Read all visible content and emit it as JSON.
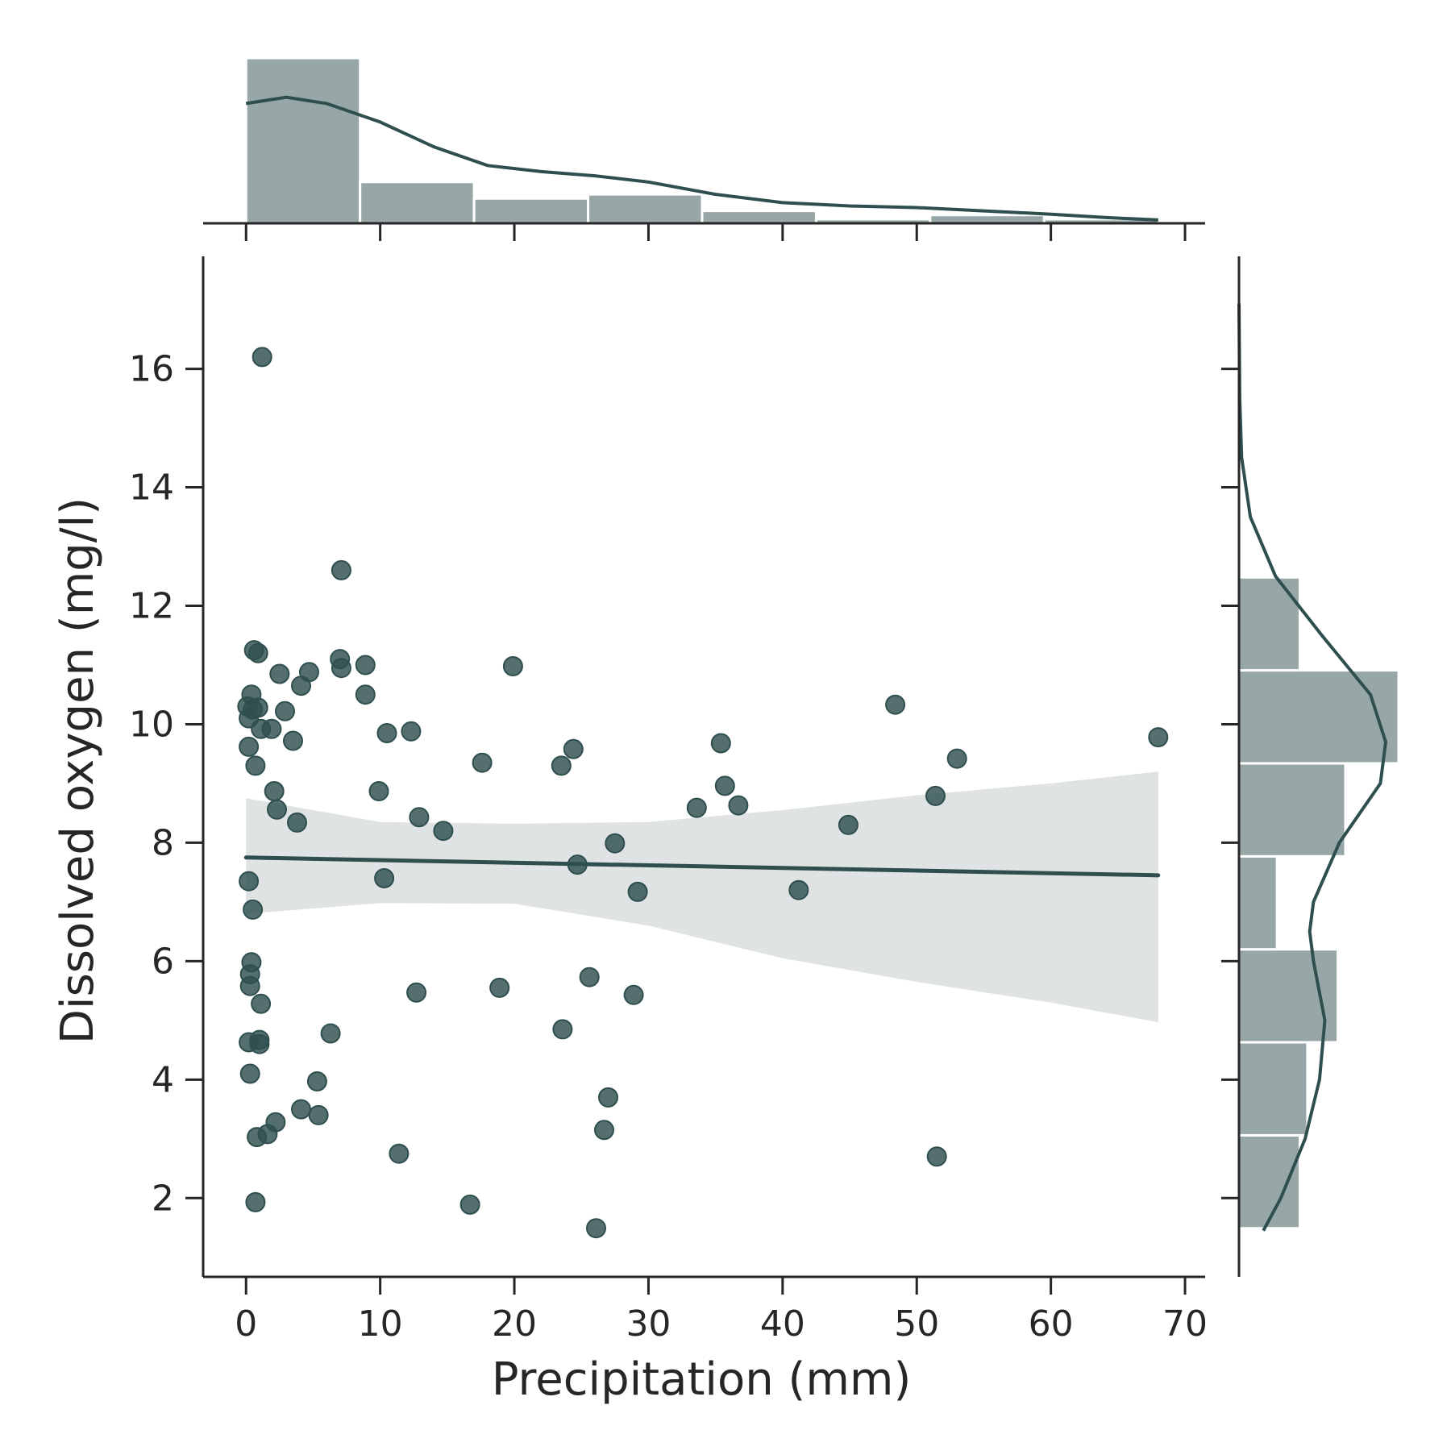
{
  "chart_data": {
    "type": "scatter",
    "subtype": "jointplot with regression line, marginal histograms and KDE",
    "title": "",
    "xlabel": "Precipitation (mm)",
    "ylabel": "Dissolved oxygen (mg/l)",
    "xlim": [
      -3.2,
      71.5
    ],
    "ylim": [
      0.67,
      17.9
    ],
    "xticks": [
      0,
      10,
      20,
      30,
      40,
      50,
      60,
      70
    ],
    "yticks": [
      2,
      4,
      6,
      8,
      10,
      12,
      14,
      16
    ],
    "grid": false,
    "colors": {
      "points": "#2f4f4f",
      "line": "#2f4f4f",
      "ci_band": "#dfe3e3",
      "hist_fill": "#97a7a7",
      "axis": "#262626"
    },
    "points": [
      [
        1.2,
        16.2
      ],
      [
        7.1,
        12.6
      ],
      [
        0.6,
        11.25
      ],
      [
        0.9,
        11.2
      ],
      [
        7.0,
        11.1
      ],
      [
        7.1,
        10.95
      ],
      [
        8.9,
        11.0
      ],
      [
        19.9,
        10.98
      ],
      [
        2.5,
        10.85
      ],
      [
        4.7,
        10.88
      ],
      [
        4.1,
        10.65
      ],
      [
        0.4,
        10.5
      ],
      [
        8.9,
        10.5
      ],
      [
        0.1,
        10.3
      ],
      [
        0.5,
        10.25
      ],
      [
        0.9,
        10.28
      ],
      [
        0.2,
        10.1
      ],
      [
        2.9,
        10.22
      ],
      [
        1.1,
        9.92
      ],
      [
        1.9,
        9.92
      ],
      [
        10.5,
        9.85
      ],
      [
        12.3,
        9.88
      ],
      [
        48.4,
        10.33
      ],
      [
        0.2,
        9.62
      ],
      [
        3.5,
        9.72
      ],
      [
        24.4,
        9.58
      ],
      [
        35.4,
        9.68
      ],
      [
        68.0,
        9.78
      ],
      [
        0.7,
        9.3
      ],
      [
        17.6,
        9.35
      ],
      [
        23.5,
        9.3
      ],
      [
        53.0,
        9.42
      ],
      [
        2.1,
        8.87
      ],
      [
        9.9,
        8.87
      ],
      [
        35.7,
        8.96
      ],
      [
        51.4,
        8.79
      ],
      [
        2.3,
        8.56
      ],
      [
        36.7,
        8.63
      ],
      [
        33.6,
        8.59
      ],
      [
        3.8,
        8.34
      ],
      [
        12.9,
        8.43
      ],
      [
        14.7,
        8.2
      ],
      [
        44.9,
        8.3
      ],
      [
        27.5,
        7.99
      ],
      [
        24.7,
        7.63
      ],
      [
        0.2,
        7.35
      ],
      [
        10.3,
        7.4
      ],
      [
        41.2,
        7.2
      ],
      [
        29.2,
        7.17
      ],
      [
        0.5,
        6.87
      ],
      [
        0.4,
        5.98
      ],
      [
        0.3,
        5.78
      ],
      [
        0.3,
        5.58
      ],
      [
        25.6,
        5.73
      ],
      [
        18.9,
        5.55
      ],
      [
        12.7,
        5.47
      ],
      [
        28.9,
        5.43
      ],
      [
        1.1,
        5.28
      ],
      [
        6.3,
        4.78
      ],
      [
        23.6,
        4.85
      ],
      [
        0.2,
        4.63
      ],
      [
        1.0,
        4.67
      ],
      [
        1.0,
        4.6
      ],
      [
        0.3,
        4.1
      ],
      [
        5.3,
        3.97
      ],
      [
        27.0,
        3.7
      ],
      [
        4.1,
        3.5
      ],
      [
        5.4,
        3.4
      ],
      [
        2.2,
        3.28
      ],
      [
        26.7,
        3.15
      ],
      [
        1.6,
        3.08
      ],
      [
        0.8,
        3.03
      ],
      [
        11.4,
        2.75
      ],
      [
        51.5,
        2.7
      ],
      [
        0.7,
        1.93
      ],
      [
        16.7,
        1.89
      ],
      [
        26.1,
        1.49
      ]
    ],
    "regression": {
      "x_range": [
        0.0,
        68.0
      ],
      "y_at_start": 7.75,
      "y_at_end": 7.45,
      "ci_lower": [
        [
          0,
          6.8
        ],
        [
          10,
          6.98
        ],
        [
          20,
          6.97
        ],
        [
          30,
          6.6
        ],
        [
          40,
          6.05
        ],
        [
          50,
          5.65
        ],
        [
          60,
          5.3
        ],
        [
          68,
          4.97
        ]
      ],
      "ci_upper": [
        [
          0,
          8.75
        ],
        [
          10,
          8.35
        ],
        [
          20,
          8.32
        ],
        [
          30,
          8.35
        ],
        [
          40,
          8.55
        ],
        [
          50,
          8.8
        ],
        [
          60,
          9.0
        ],
        [
          68,
          9.2
        ]
      ]
    },
    "marginal_x_hist": {
      "bin_edges": [
        0.0,
        8.5,
        17.0,
        25.5,
        34.0,
        42.5,
        51.0,
        59.5,
        68.0
      ],
      "counts": [
        40,
        10,
        6,
        7,
        3,
        1,
        2,
        1
      ],
      "kde": [
        [
          0,
          29
        ],
        [
          3,
          30.5
        ],
        [
          6,
          29
        ],
        [
          10,
          24.5
        ],
        [
          14,
          18.5
        ],
        [
          18,
          14
        ],
        [
          22,
          12.5
        ],
        [
          26,
          11.5
        ],
        [
          30,
          10
        ],
        [
          35,
          7
        ],
        [
          40,
          5
        ],
        [
          45,
          4.2
        ],
        [
          50,
          3.8
        ],
        [
          55,
          3
        ],
        [
          60,
          2.2
        ],
        [
          64,
          1.4
        ],
        [
          68,
          0.8
        ]
      ]
    },
    "marginal_y_hist": {
      "bin_edges": [
        1.49,
        3.06,
        4.63,
        6.2,
        7.77,
        9.34,
        10.91,
        12.48
      ],
      "counts": [
        8,
        9,
        13,
        5,
        14,
        21,
        8
      ],
      "extra_bin": {
        "edges": [
          12.48,
          16.2
        ],
        "counts": 0
      },
      "kde": [
        [
          1.45,
          3.2
        ],
        [
          2.0,
          5.5
        ],
        [
          3.0,
          8.7
        ],
        [
          4.0,
          10.6
        ],
        [
          5.0,
          11.3
        ],
        [
          6.0,
          9.8
        ],
        [
          6.5,
          9.3
        ],
        [
          7.0,
          9.8
        ],
        [
          8.0,
          13.2
        ],
        [
          9.0,
          18.6
        ],
        [
          9.7,
          19.3
        ],
        [
          10.5,
          17.3
        ],
        [
          11.5,
          10.9
        ],
        [
          12.5,
          4.8
        ],
        [
          13.5,
          1.5
        ],
        [
          14.5,
          0.35
        ],
        [
          15.5,
          0.1
        ],
        [
          17.1,
          0.0
        ]
      ]
    }
  }
}
